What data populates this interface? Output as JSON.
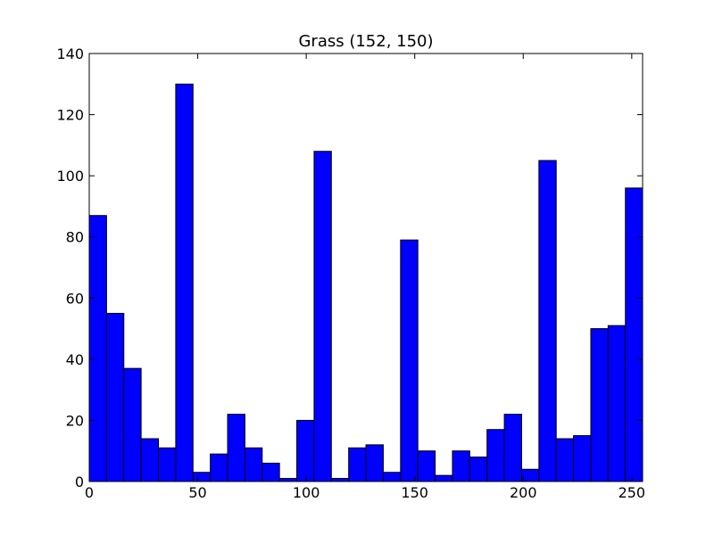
{
  "chart_data": {
    "type": "bar",
    "title": "Grass (152, 150)",
    "xlabel": "",
    "ylabel": "",
    "xlim": [
      0,
      255
    ],
    "ylim": [
      0,
      140
    ],
    "bin_width": 7.97,
    "bin_edges_start": 0,
    "values": [
      87,
      55,
      37,
      14,
      11,
      130,
      3,
      9,
      22,
      11,
      6,
      1,
      20,
      108,
      1,
      11,
      12,
      3,
      79,
      10,
      2,
      10,
      8,
      17,
      22,
      4,
      105,
      14,
      15,
      50,
      51,
      96
    ],
    "x_ticks": [
      "0",
      "50",
      "100",
      "150",
      "200",
      "250"
    ],
    "x_tick_values": [
      0,
      50,
      100,
      150,
      200,
      250
    ],
    "y_ticks": [
      "0",
      "20",
      "40",
      "60",
      "80",
      "100",
      "120",
      "140"
    ],
    "y_tick_values": [
      0,
      20,
      40,
      60,
      80,
      100,
      120,
      140
    ],
    "bar_color": "#0000ff",
    "edge_color": "#000000",
    "grid": false,
    "legend": "none"
  }
}
